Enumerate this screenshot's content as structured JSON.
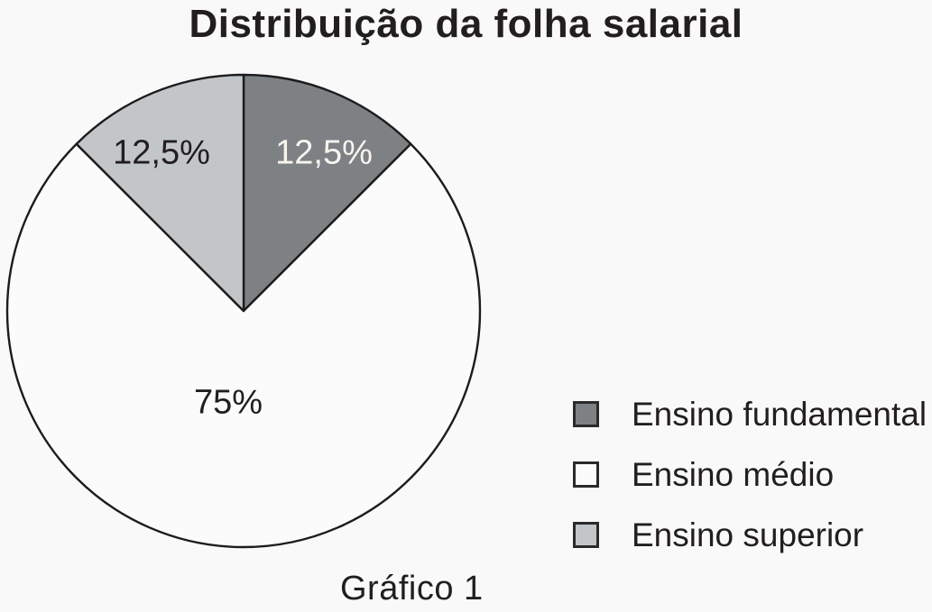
{
  "page": {
    "background_color": "#f9f9f9",
    "text_color": "#221e1f"
  },
  "title": "Distribuição da folha salarial",
  "caption": "Gráfico 1",
  "chart_data": {
    "type": "pie",
    "title": "Distribuição da folha salarial",
    "caption": "Gráfico 1",
    "unit": "%",
    "start_angle_deg": 0,
    "direction": "clockwise",
    "outline_color": "#1c1c1c",
    "slices": [
      {
        "label": "Ensino fundamental",
        "value": 12.5,
        "display": "12,5%",
        "color": "#7d8184",
        "text_color": "#f8f4ee"
      },
      {
        "label": "Ensino médio",
        "value": 75,
        "display": "75%",
        "color": "#fbfbfb",
        "text_color": "#221e1f"
      },
      {
        "label": "Ensino superior",
        "value": 12.5,
        "display": "12,5%",
        "color": "#c3c6c8",
        "text_color": "#221e1f"
      }
    ],
    "legend": {
      "position": "right",
      "entries": [
        "Ensino fundamental",
        "Ensino médio",
        "Ensino superior"
      ]
    }
  }
}
